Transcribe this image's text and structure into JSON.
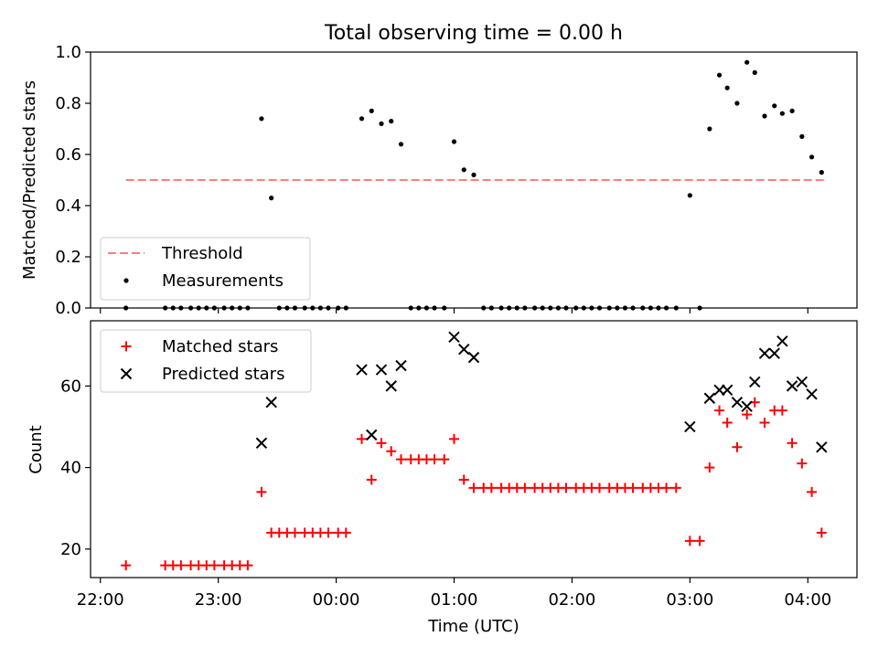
{
  "title": "Total observing time = 0.00 h",
  "colors": {
    "threshold": "#ff7f7f",
    "measurements": "#000000",
    "matched": "#ff0000",
    "predicted": "#000000"
  },
  "chart_data": [
    {
      "type": "scatter",
      "title": "Total observing time = 0.00 h",
      "xlabel": "",
      "ylabel": "Matched/Predicted stars",
      "xlim": [
        "21:55",
        "04:25"
      ],
      "ylim": [
        0,
        1.0
      ],
      "yticks": [
        0.0,
        0.2,
        0.4,
        0.6,
        0.8,
        1.0
      ],
      "ytick_labels": [
        "0.0",
        "0.2",
        "0.4",
        "0.6",
        "0.8",
        "1.0"
      ],
      "legend_position": "lower-left",
      "series": [
        {
          "name": "Threshold",
          "kind": "dashed-line",
          "points": [
            [
              "22:13",
              0.5
            ],
            [
              "04:10",
              0.5
            ]
          ]
        },
        {
          "name": "Measurements",
          "kind": "dot",
          "points": [
            [
              "22:13",
              0.0
            ],
            [
              "22:33",
              0.0
            ],
            [
              "22:37",
              0.0
            ],
            [
              "22:41",
              0.0
            ],
            [
              "22:46",
              0.0
            ],
            [
              "22:50",
              0.0
            ],
            [
              "22:54",
              0.0
            ],
            [
              "22:58",
              0.0
            ],
            [
              "23:03",
              0.0
            ],
            [
              "23:07",
              0.0
            ],
            [
              "23:11",
              0.0
            ],
            [
              "23:15",
              0.0
            ],
            [
              "23:22",
              0.74
            ],
            [
              "23:27",
              0.43
            ],
            [
              "23:31",
              0.0
            ],
            [
              "23:35",
              0.0
            ],
            [
              "23:39",
              0.0
            ],
            [
              "23:44",
              0.0
            ],
            [
              "23:48",
              0.0
            ],
            [
              "23:52",
              0.0
            ],
            [
              "23:56",
              0.0
            ],
            [
              "00:01",
              0.0
            ],
            [
              "00:05",
              0.0
            ],
            [
              "00:13",
              0.74
            ],
            [
              "00:18",
              0.77
            ],
            [
              "00:23",
              0.72
            ],
            [
              "00:28",
              0.73
            ],
            [
              "00:33",
              0.64
            ],
            [
              "00:38",
              0.0
            ],
            [
              "00:42",
              0.0
            ],
            [
              "00:46",
              0.0
            ],
            [
              "00:50",
              0.0
            ],
            [
              "00:55",
              0.0
            ],
            [
              "01:00",
              0.65
            ],
            [
              "01:05",
              0.54
            ],
            [
              "01:10",
              0.52
            ],
            [
              "01:15",
              0.0
            ],
            [
              "01:19",
              0.0
            ],
            [
              "01:24",
              0.0
            ],
            [
              "01:28",
              0.0
            ],
            [
              "01:32",
              0.0
            ],
            [
              "01:36",
              0.0
            ],
            [
              "01:41",
              0.0
            ],
            [
              "01:45",
              0.0
            ],
            [
              "01:49",
              0.0
            ],
            [
              "01:53",
              0.0
            ],
            [
              "01:57",
              0.0
            ],
            [
              "02:02",
              0.0
            ],
            [
              "02:06",
              0.0
            ],
            [
              "02:10",
              0.0
            ],
            [
              "02:14",
              0.0
            ],
            [
              "02:19",
              0.0
            ],
            [
              "02:23",
              0.0
            ],
            [
              "02:27",
              0.0
            ],
            [
              "02:31",
              0.0
            ],
            [
              "02:36",
              0.0
            ],
            [
              "02:40",
              0.0
            ],
            [
              "02:44",
              0.0
            ],
            [
              "02:48",
              0.0
            ],
            [
              "02:53",
              0.0
            ],
            [
              "03:00",
              0.44
            ],
            [
              "03:05",
              0.0
            ],
            [
              "03:10",
              0.7
            ],
            [
              "03:15",
              0.91
            ],
            [
              "03:19",
              0.86
            ],
            [
              "03:24",
              0.8
            ],
            [
              "03:29",
              0.96
            ],
            [
              "03:33",
              0.92
            ],
            [
              "03:38",
              0.75
            ],
            [
              "03:43",
              0.79
            ],
            [
              "03:47",
              0.76
            ],
            [
              "03:52",
              0.77
            ],
            [
              "03:57",
              0.67
            ],
            [
              "04:02",
              0.59
            ],
            [
              "04:07",
              0.53
            ]
          ]
        }
      ]
    },
    {
      "type": "scatter",
      "title": "",
      "xlabel": "Time (UTC)",
      "ylabel": "Count",
      "xlim": [
        "21:55",
        "04:25"
      ],
      "ylim": [
        13,
        76
      ],
      "xticks": [
        "22:00",
        "23:00",
        "00:00",
        "01:00",
        "02:00",
        "03:00",
        "04:00"
      ],
      "yticks": [
        20,
        40,
        60
      ],
      "ytick_labels": [
        "20",
        "40",
        "60"
      ],
      "legend_position": "upper-left",
      "series": [
        {
          "name": "Matched stars",
          "kind": "plus",
          "points": [
            [
              "22:13",
              16
            ],
            [
              "22:33",
              16
            ],
            [
              "22:37",
              16
            ],
            [
              "22:41",
              16
            ],
            [
              "22:46",
              16
            ],
            [
              "22:50",
              16
            ],
            [
              "22:54",
              16
            ],
            [
              "22:58",
              16
            ],
            [
              "23:03",
              16
            ],
            [
              "23:07",
              16
            ],
            [
              "23:11",
              16
            ],
            [
              "23:15",
              16
            ],
            [
              "23:22",
              34
            ],
            [
              "23:27",
              24
            ],
            [
              "23:31",
              24
            ],
            [
              "23:35",
              24
            ],
            [
              "23:39",
              24
            ],
            [
              "23:44",
              24
            ],
            [
              "23:48",
              24
            ],
            [
              "23:52",
              24
            ],
            [
              "23:56",
              24
            ],
            [
              "00:01",
              24
            ],
            [
              "00:05",
              24
            ],
            [
              "00:13",
              47
            ],
            [
              "00:18",
              37
            ],
            [
              "00:23",
              46
            ],
            [
              "00:28",
              44
            ],
            [
              "00:33",
              42
            ],
            [
              "00:38",
              42
            ],
            [
              "00:42",
              42
            ],
            [
              "00:46",
              42
            ],
            [
              "00:50",
              42
            ],
            [
              "00:55",
              42
            ],
            [
              "01:00",
              47
            ],
            [
              "01:05",
              37
            ],
            [
              "01:10",
              35
            ],
            [
              "01:15",
              35
            ],
            [
              "01:19",
              35
            ],
            [
              "01:24",
              35
            ],
            [
              "01:28",
              35
            ],
            [
              "01:32",
              35
            ],
            [
              "01:36",
              35
            ],
            [
              "01:41",
              35
            ],
            [
              "01:45",
              35
            ],
            [
              "01:49",
              35
            ],
            [
              "01:53",
              35
            ],
            [
              "01:57",
              35
            ],
            [
              "02:02",
              35
            ],
            [
              "02:06",
              35
            ],
            [
              "02:10",
              35
            ],
            [
              "02:14",
              35
            ],
            [
              "02:19",
              35
            ],
            [
              "02:23",
              35
            ],
            [
              "02:27",
              35
            ],
            [
              "02:31",
              35
            ],
            [
              "02:36",
              35
            ],
            [
              "02:40",
              35
            ],
            [
              "02:44",
              35
            ],
            [
              "02:48",
              35
            ],
            [
              "02:53",
              35
            ],
            [
              "03:00",
              22
            ],
            [
              "03:05",
              22
            ],
            [
              "03:10",
              40
            ],
            [
              "03:15",
              54
            ],
            [
              "03:19",
              51
            ],
            [
              "03:24",
              45
            ],
            [
              "03:29",
              53
            ],
            [
              "03:33",
              56
            ],
            [
              "03:38",
              51
            ],
            [
              "03:43",
              54
            ],
            [
              "03:47",
              54
            ],
            [
              "03:52",
              46
            ],
            [
              "03:57",
              41
            ],
            [
              "04:02",
              34
            ],
            [
              "04:07",
              24
            ]
          ]
        },
        {
          "name": "Predicted stars",
          "kind": "cross",
          "points": [
            [
              "23:22",
              46
            ],
            [
              "23:27",
              56
            ],
            [
              "00:13",
              64
            ],
            [
              "00:18",
              48
            ],
            [
              "00:23",
              64
            ],
            [
              "00:28",
              60
            ],
            [
              "00:33",
              65
            ],
            [
              "01:00",
              72
            ],
            [
              "01:05",
              69
            ],
            [
              "01:10",
              67
            ],
            [
              "03:00",
              50
            ],
            [
              "03:10",
              57
            ],
            [
              "03:15",
              59
            ],
            [
              "03:19",
              59
            ],
            [
              "03:24",
              56
            ],
            [
              "03:29",
              55
            ],
            [
              "03:33",
              61
            ],
            [
              "03:38",
              68
            ],
            [
              "03:43",
              68
            ],
            [
              "03:47",
              71
            ],
            [
              "03:52",
              60
            ],
            [
              "03:57",
              61
            ],
            [
              "04:02",
              58
            ],
            [
              "04:07",
              45
            ]
          ]
        }
      ]
    }
  ]
}
